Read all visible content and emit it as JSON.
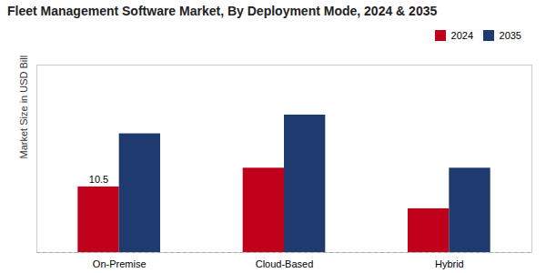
{
  "chart_data": {
    "type": "bar",
    "title": "Fleet Management Software Market, By Deployment Mode, 2024 & 2035",
    "ylabel": "Market Size in USD Billion",
    "categories": [
      "On-Premise",
      "Cloud-Based",
      "Hybrid"
    ],
    "series": [
      {
        "name": "2024",
        "color": "#c0001a",
        "values": [
          10.5,
          13.5,
          7.0
        ]
      },
      {
        "name": "2035",
        "color": "#1e3a6e",
        "values": [
          19.0,
          22.0,
          13.5
        ]
      }
    ],
    "ylim": [
      0,
      30
    ],
    "tick_labels": "x",
    "grid": false,
    "legend": "upper right",
    "annotations": [
      {
        "text": "10.5",
        "category": "On-Premise",
        "series": "2024"
      }
    ]
  }
}
